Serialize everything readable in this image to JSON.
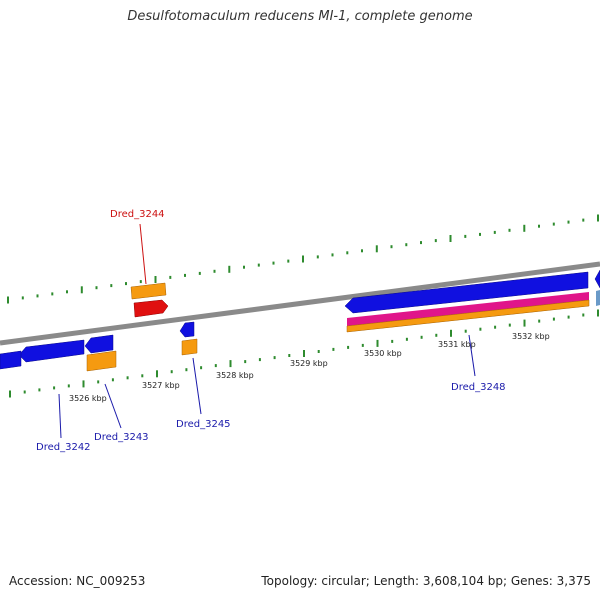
{
  "title": "Desulfotomaculum reducens MI-1, complete genome",
  "footer": {
    "accession": "Accession: NC_009253",
    "summary": "Topology: circular; Length: 3,608,104 bp; Genes: 3,375"
  },
  "colors": {
    "backbone": "#8a8a8a",
    "tick": "#2e8b2e",
    "cds_forward": "#1010e0",
    "cds_reverse": "#1010e0",
    "orange_track": "#f59a10",
    "magenta_track": "#e0158a",
    "red_gene": "#e01010",
    "light_blue": "#6a9ac8",
    "label_blue": "#1a1aaa",
    "label_red": "#cc1010"
  },
  "scale_labels": [
    "3526 kbp",
    "3527 kbp",
    "3528 kbp",
    "3529 kbp",
    "3530 kbp",
    "3531 kbp",
    "3532 kbp"
  ],
  "gene_labels": [
    {
      "id": "Dred_3244",
      "color": "red"
    },
    {
      "id": "Dred_3245",
      "color": "blue"
    },
    {
      "id": "Dred_3243",
      "color": "blue"
    },
    {
      "id": "Dred_3242",
      "color": "blue"
    },
    {
      "id": "Dred_3248",
      "color": "blue"
    }
  ]
}
